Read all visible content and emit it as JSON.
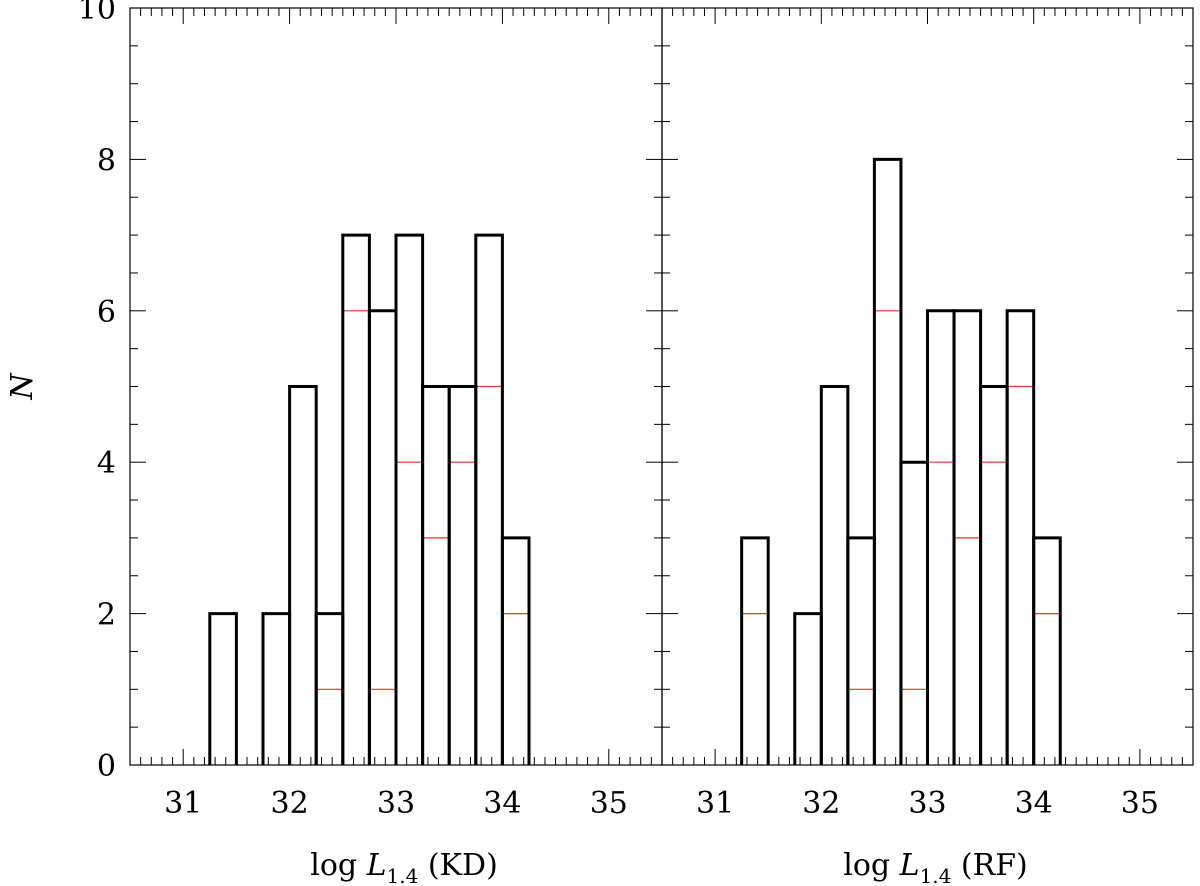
{
  "chart_data": [
    {
      "type": "histogram",
      "panel": "left",
      "xlabel": {
        "prefix": "log",
        "symbol": "L",
        "subscript": "1.4",
        "suffix": "(KD)"
      },
      "ylabel": "N",
      "xlim": [
        30.5,
        35.5
      ],
      "ylim": [
        0,
        10
      ],
      "xticks": [
        31,
        32,
        33,
        34,
        35
      ],
      "yticks": [
        0,
        2,
        4,
        6,
        8,
        10
      ],
      "bin_width": 0.25,
      "series": [
        {
          "color": "#000000",
          "bins": [
            [
              31.25,
              2
            ],
            [
              31.75,
              2
            ],
            [
              32.0,
              5
            ],
            [
              32.25,
              2
            ],
            [
              32.5,
              7
            ],
            [
              32.75,
              6
            ],
            [
              33.0,
              7
            ],
            [
              33.25,
              5
            ],
            [
              33.5,
              5
            ],
            [
              33.75,
              7
            ],
            [
              34.0,
              3
            ]
          ]
        },
        {
          "color": "#e8322c",
          "bins": [
            [
              32.25,
              1
            ],
            [
              32.5,
              6
            ],
            [
              32.75,
              1
            ],
            [
              33.0,
              4
            ],
            [
              33.25,
              3
            ],
            [
              33.5,
              4
            ],
            [
              33.75,
              5
            ],
            [
              34.0,
              2
            ]
          ]
        }
      ]
    },
    {
      "type": "histogram",
      "panel": "right",
      "xlabel": {
        "prefix": "log",
        "symbol": "L",
        "subscript": "1.4",
        "suffix": "(RF)"
      },
      "ylabel": "",
      "xlim": [
        30.5,
        35.5
      ],
      "ylim": [
        0,
        10
      ],
      "xticks": [
        31,
        32,
        33,
        34,
        35
      ],
      "yticks": [],
      "bin_width": 0.25,
      "series": [
        {
          "color": "#000000",
          "bins": [
            [
              31.25,
              3
            ],
            [
              31.75,
              2
            ],
            [
              32.0,
              5
            ],
            [
              32.25,
              3
            ],
            [
              32.5,
              8
            ],
            [
              32.75,
              4
            ],
            [
              33.0,
              6
            ],
            [
              33.25,
              6
            ],
            [
              33.5,
              5
            ],
            [
              33.75,
              6
            ],
            [
              34.0,
              3
            ]
          ]
        },
        {
          "color": "#e8322c",
          "bins": [
            [
              31.25,
              2
            ],
            [
              32.25,
              1
            ],
            [
              32.5,
              6
            ],
            [
              32.75,
              1
            ],
            [
              33.0,
              4
            ],
            [
              33.25,
              3
            ],
            [
              33.5,
              4
            ],
            [
              33.75,
              5
            ],
            [
              34.0,
              2
            ]
          ]
        }
      ]
    }
  ]
}
